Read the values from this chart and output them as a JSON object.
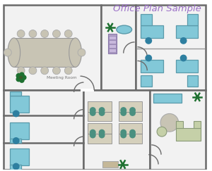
{
  "title": "Office Plan Sample",
  "title_color": "#9B6FC7",
  "title_fontsize": 9.5,
  "bg_color": "#ffffff",
  "wall_color": "#6a6a6a",
  "wall_lw": 1.8,
  "meeting_room_label": "Meeting Room",
  "colors": {
    "room_fill": "#f2f2f2",
    "desk_blue": "#82C8D8",
    "desk_beige": "#D5D0BC",
    "chair_blue": "#2E7FA0",
    "chair_teal": "#4A9080",
    "table_gray": "#C8C4B4",
    "plant_dark": "#1E7030",
    "plant_mid": "#2A8A3A",
    "sofa_green": "#C5D0A8",
    "cabinet_purple": "#B0A0C5",
    "cabinet_tan": "#C5B898",
    "wall_gray": "#888888",
    "divider": "#999999",
    "blue_rect": "#7AC0D5"
  }
}
